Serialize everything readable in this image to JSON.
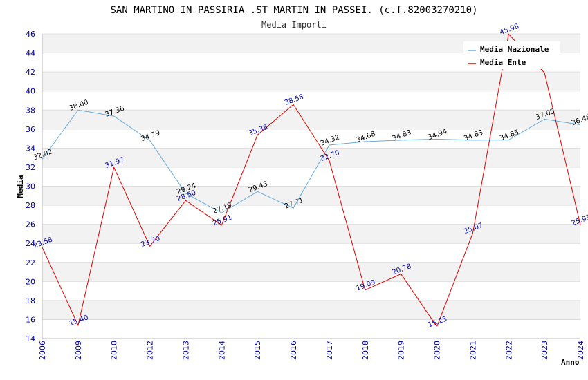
{
  "chart_data": {
    "type": "line",
    "title": "SAN MARTINO IN PASSIRIA .ST MARTIN IN PASSEI. (c.f.82003270210)",
    "subtitle": "Media Importi",
    "xlabel": "Anno",
    "ylabel": "Media",
    "ylim": [
      14,
      46
    ],
    "ytick_step": 2,
    "grid": true,
    "legend_position": "top-right",
    "categories": [
      "2006",
      "2009",
      "2010",
      "2012",
      "2013",
      "2014",
      "2015",
      "2016",
      "2017",
      "2018",
      "2019",
      "2020",
      "2021",
      "2022",
      "2023",
      "2024"
    ],
    "series": [
      {
        "name": "Media Nazionale",
        "color": "#66aadd",
        "values": [
          32.82,
          38.0,
          37.36,
          34.79,
          29.24,
          27.19,
          29.43,
          27.71,
          34.32,
          34.68,
          34.83,
          34.94,
          34.83,
          34.85,
          37.05,
          36.46
        ],
        "labels": [
          "32.82",
          "38.00",
          "37.36",
          "34.79",
          "29.24",
          "27.19",
          "29.43",
          "27.71",
          "34.32",
          "34.68",
          "34.83",
          "34.94",
          "34.83",
          "34.85",
          "37.05",
          "36.46"
        ]
      },
      {
        "name": "Media Ente",
        "color": "#dd0000",
        "values": [
          23.58,
          15.4,
          31.97,
          23.7,
          28.5,
          25.91,
          35.38,
          38.58,
          32.7,
          19.09,
          20.78,
          15.25,
          25.07,
          45.98,
          41.9,
          25.93
        ],
        "labels": [
          "23.58",
          "15.40",
          "31.97",
          "23.70",
          "28.50",
          "25.91",
          "35.38",
          "38.58",
          "32.70",
          "19.09",
          "20.78",
          "15.25",
          "25.07",
          "45.98",
          "",
          "25.93"
        ]
      }
    ]
  }
}
